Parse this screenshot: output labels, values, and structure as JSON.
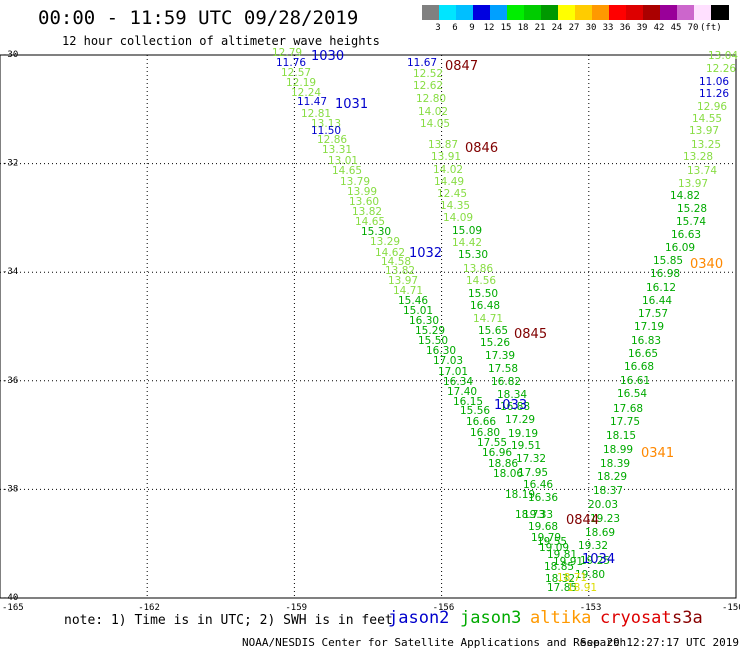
{
  "title": "00:00 - 11:59 UTC 09/28/2019",
  "subtitle": "12 hour collection of altimeter wave heights",
  "legend": {
    "unit": "(ft)",
    "colors": [
      "#808080",
      "#00e5ff",
      "#00bfff",
      "#0000e0",
      "#00a0ff",
      "#00ee00",
      "#00cc00",
      "#009900",
      "#ffff00",
      "#ffcc00",
      "#ff9900",
      "#ff0000",
      "#dd0000",
      "#aa0000",
      "#990099",
      "#cc66cc",
      "#ffe0ff",
      "#000000"
    ],
    "ticks": [
      "3",
      "6",
      "9",
      "12",
      "15",
      "18",
      "21",
      "24",
      "27",
      "30",
      "33",
      "36",
      "39",
      "42",
      "45",
      "70"
    ]
  },
  "axes": {
    "lat_ticks": [
      -30,
      -32,
      -34,
      -36,
      -38,
      -40
    ],
    "lon_ticks": [
      -165,
      -162,
      -159,
      -156,
      -153,
      -150
    ],
    "lat_labels": [
      "-30",
      "-32",
      "-34",
      "-36",
      "-38",
      "-40"
    ],
    "lon_labels": [
      "-165",
      "-162",
      "-159",
      "-156",
      "-153",
      "-150"
    ]
  },
  "tracks": {
    "lightgreen": {
      "color": "#88dd44",
      "points": [
        [
          "12.79",
          272,
          56
        ],
        [
          "12.57",
          281,
          76
        ],
        [
          "12.19",
          286,
          86
        ],
        [
          "12.24",
          291,
          96
        ],
        [
          "12.81",
          301,
          117
        ],
        [
          "13.13",
          311,
          127
        ],
        [
          "12.86",
          317,
          143
        ],
        [
          "13.31",
          322,
          153
        ],
        [
          "13.01",
          328,
          164
        ],
        [
          "14.65",
          332,
          174
        ],
        [
          "13.79",
          340,
          185
        ],
        [
          "13.99",
          347,
          195
        ],
        [
          "13.60",
          349,
          205
        ],
        [
          "13.82",
          352,
          215
        ],
        [
          "14.65",
          355,
          225
        ],
        [
          "13.29",
          370,
          245
        ],
        [
          "14.62",
          375,
          256
        ],
        [
          "14.58",
          381,
          265
        ],
        [
          "13.82",
          385,
          274
        ],
        [
          "13.97",
          388,
          284
        ],
        [
          "14.71",
          393,
          294
        ],
        [
          "12.52",
          413,
          77
        ],
        [
          "12.62",
          413,
          89
        ],
        [
          "12.80",
          416,
          102
        ],
        [
          "14.02",
          418,
          115
        ],
        [
          "14.05",
          420,
          127
        ],
        [
          "13.87",
          428,
          148
        ],
        [
          "13.91",
          431,
          160
        ],
        [
          "14.02",
          433,
          173
        ],
        [
          "14.49",
          434,
          185
        ],
        [
          "12.45",
          437,
          197
        ],
        [
          "14.35",
          440,
          209
        ],
        [
          "14.09",
          443,
          221
        ],
        [
          "14.42",
          452,
          246
        ],
        [
          "13.86",
          463,
          272
        ],
        [
          "14.56",
          466,
          284
        ],
        [
          "14.71",
          473,
          322
        ],
        [
          "13.04",
          708,
          59
        ],
        [
          "12.26",
          706,
          72
        ],
        [
          "12.96",
          697,
          110
        ],
        [
          "14.55",
          692,
          122
        ],
        [
          "13.97",
          689,
          134
        ],
        [
          "13.25",
          691,
          148
        ],
        [
          "13.28",
          683,
          160
        ],
        [
          "13.74",
          687,
          174
        ],
        [
          "13.97",
          678,
          187
        ]
      ]
    },
    "green": {
      "color": "#00aa00",
      "points": [
        [
          "15.30",
          361,
          235
        ],
        [
          "15.46",
          398,
          304
        ],
        [
          "15.01",
          403,
          314
        ],
        [
          "16.30",
          409,
          324
        ],
        [
          "15.29",
          415,
          334
        ],
        [
          "15.50",
          418,
          344
        ],
        [
          "16.30",
          426,
          354
        ],
        [
          "17.03",
          433,
          364
        ],
        [
          "17.01",
          438,
          375
        ],
        [
          "16.34",
          443,
          385
        ],
        [
          "17.40",
          447,
          395
        ],
        [
          "16.15",
          453,
          405
        ],
        [
          "15.56",
          460,
          414
        ],
        [
          "16.66",
          466,
          425
        ],
        [
          "16.80",
          470,
          436
        ],
        [
          "17.55",
          477,
          446
        ],
        [
          "16.96",
          482,
          456
        ],
        [
          "18.86",
          488,
          467
        ],
        [
          "18.06",
          493,
          477
        ],
        [
          "18.19",
          505,
          498
        ],
        [
          "18.73",
          515,
          518
        ],
        [
          "15.09",
          452,
          234
        ],
        [
          "15.30",
          458,
          258
        ],
        [
          "15.50",
          468,
          297
        ],
        [
          "16.48",
          470,
          309
        ],
        [
          "15.65",
          478,
          334
        ],
        [
          "15.26",
          480,
          346
        ],
        [
          "17.39",
          485,
          359
        ],
        [
          "17.58",
          488,
          372
        ],
        [
          "16.82",
          491,
          385
        ],
        [
          "18.34",
          497,
          398
        ],
        [
          "16.88",
          500,
          410
        ],
        [
          "17.29",
          505,
          423
        ],
        [
          "19.19",
          508,
          437
        ],
        [
          "19.51",
          511,
          449
        ],
        [
          "17.32",
          516,
          462
        ],
        [
          "17.95",
          518,
          476
        ],
        [
          "16.46",
          523,
          488
        ],
        [
          "16.36",
          528,
          501
        ],
        [
          "19.33",
          523,
          518
        ],
        [
          "19.68",
          528,
          530
        ],
        [
          "19.79",
          531,
          541
        ],
        [
          "19.55",
          537,
          545
        ],
        [
          "19.09",
          539,
          551
        ],
        [
          "19.91",
          553,
          565
        ],
        [
          "14.82",
          670,
          199
        ],
        [
          "15.28",
          677,
          212
        ],
        [
          "15.74",
          676,
          225
        ],
        [
          "16.63",
          671,
          238
        ],
        [
          "16.09",
          665,
          251
        ],
        [
          "15.85",
          653,
          264
        ],
        [
          "16.98",
          650,
          277
        ],
        [
          "16.12",
          646,
          291
        ],
        [
          "16.44",
          642,
          304
        ],
        [
          "17.57",
          638,
          317
        ],
        [
          "17.19",
          634,
          330
        ],
        [
          "16.83",
          631,
          344
        ],
        [
          "16.65",
          628,
          357
        ],
        [
          "16.68",
          624,
          370
        ],
        [
          "16.61",
          620,
          384
        ],
        [
          "16.54",
          617,
          397
        ],
        [
          "17.68",
          613,
          412
        ],
        [
          "17.75",
          610,
          425
        ],
        [
          "18.15",
          606,
          439
        ],
        [
          "18.99",
          603,
          453
        ],
        [
          "18.39",
          600,
          467
        ],
        [
          "18.29",
          597,
          480
        ],
        [
          "18.37",
          593,
          494
        ],
        [
          "20.03",
          588,
          508
        ],
        [
          "19.23",
          590,
          522
        ],
        [
          "18.69",
          585,
          536
        ],
        [
          "19.32",
          578,
          549
        ],
        [
          "19.25",
          580,
          564
        ],
        [
          "19.80",
          575,
          578
        ],
        [
          "19.81",
          547,
          558
        ],
        [
          "18.85",
          544,
          570
        ],
        [
          "17.85",
          547,
          591
        ],
        [
          "18.32",
          545,
          582
        ]
      ]
    },
    "blue": {
      "color": "#0000cc",
      "points": [
        [
          "11.76",
          276,
          66
        ],
        [
          "11.47",
          297,
          105
        ],
        [
          "11.50",
          311,
          134
        ],
        [
          "11.67",
          407,
          66
        ],
        [
          "11.06",
          699,
          85
        ],
        [
          "11.26",
          699,
          97
        ]
      ]
    },
    "yellow": {
      "color": "#dddd00",
      "points": [
        [
          "18.91",
          567,
          591
        ],
        [
          "18.71",
          557,
          581
        ]
      ]
    },
    "passes": [
      [
        "1030",
        311,
        56,
        "#0000cc"
      ],
      [
        "1031",
        335,
        104,
        "#0000cc"
      ],
      [
        "1032",
        409,
        253,
        "#0000cc"
      ],
      [
        "1033",
        494,
        405,
        "#0000cc"
      ],
      [
        "1034",
        582,
        559,
        "#0000cc"
      ],
      [
        "0847",
        445,
        66,
        "#800000"
      ],
      [
        "0846",
        465,
        148,
        "#800000"
      ],
      [
        "0845",
        514,
        334,
        "#800000"
      ],
      [
        "0844",
        566,
        520,
        "#800000"
      ],
      [
        "0340",
        690,
        264,
        "#ff8800"
      ],
      [
        "0341",
        641,
        453,
        "#ff8800"
      ]
    ]
  },
  "note": "note: 1) Time is in UTC; 2) SWH is in feet",
  "satellites": [
    {
      "name": "jason2",
      "color": "#0000cc"
    },
    {
      "name": "jason3",
      "color": "#00aa00"
    },
    {
      "name": "altika",
      "color": "#ff9900"
    },
    {
      "name": "cryosat",
      "color": "#dd0000"
    },
    {
      "name": "s3a",
      "color": "#880000"
    }
  ],
  "credit": "NOAA/NESDIS Center for Satellite Applications and Research",
  "timestamp": "Sep 29 12:27:17 UTC 2019"
}
